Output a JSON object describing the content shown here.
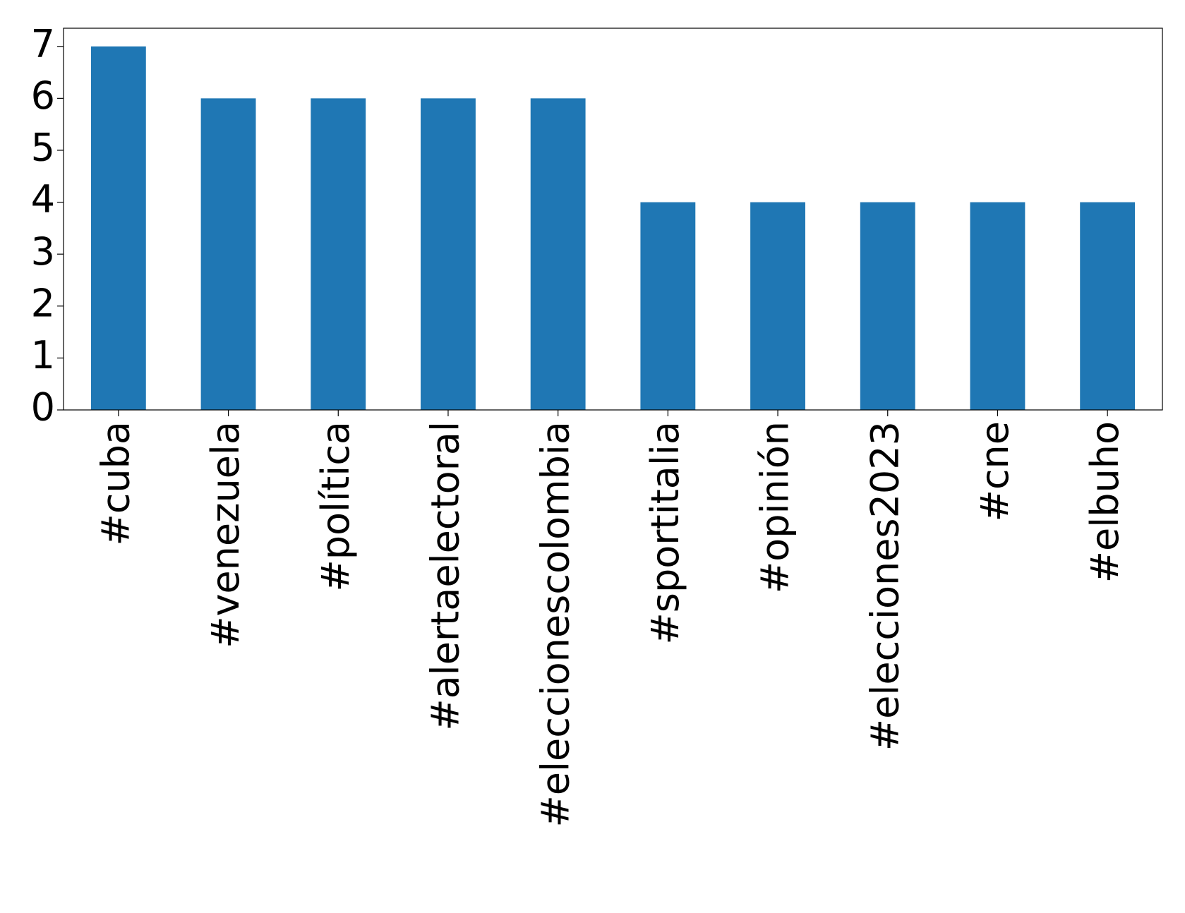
{
  "chart_data": {
    "type": "bar",
    "categories": [
      "#cuba",
      "#venezuela",
      "#política",
      "#alertaelectoral",
      "#eleccionescolombia",
      "#sportitalia",
      "#opinión",
      "#elecciones2023",
      "#cne",
      "#elbuho"
    ],
    "values": [
      7,
      6,
      6,
      6,
      6,
      4,
      4,
      4,
      4,
      4
    ],
    "color": "#1f77b4",
    "ylim": [
      0,
      7.35
    ],
    "yticks": [
      0,
      1,
      2,
      3,
      4,
      5,
      6,
      7
    ],
    "grid": false
  }
}
